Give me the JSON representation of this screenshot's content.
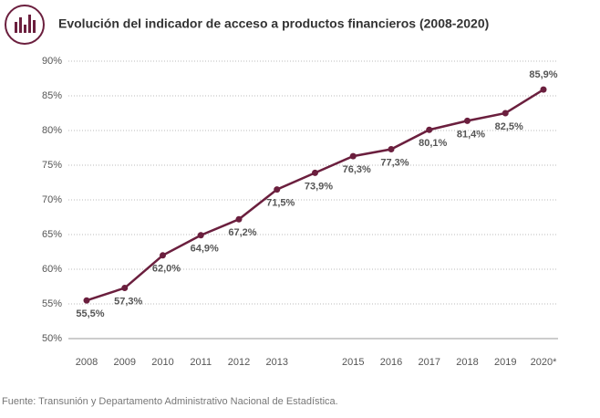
{
  "chart_data": {
    "type": "line",
    "title": "Evolución del indicador de acceso a productos financieros (2008-2020)",
    "source": "Fuente: Transunión y Departamento Administrativo Nacional de Estadística.",
    "categories": [
      "2008",
      "2009",
      "2010",
      "2011",
      "2012",
      "2013",
      null,
      "2015",
      "2016",
      "2017",
      "2018",
      "2019",
      "2020*"
    ],
    "series": [
      {
        "name": "Indicador de acceso",
        "color": "#6b1f3e",
        "values": [
          55.5,
          57.3,
          62.0,
          64.9,
          67.2,
          71.5,
          73.9,
          76.3,
          77.3,
          80.1,
          81.4,
          82.5,
          85.9
        ],
        "value_labels": [
          "55,5%",
          "57,3%",
          "62,0%",
          "64,9%",
          "67,2%",
          "71,5%",
          "73,9%",
          "76,3%",
          "77,3%",
          "80,1%",
          "81,4%",
          "82,5%",
          "85,9%"
        ]
      }
    ],
    "ylim": [
      50,
      90
    ],
    "yticks": [
      {
        "value": 50,
        "label": "50%"
      },
      {
        "value": 55,
        "label": "55%"
      },
      {
        "value": 60,
        "label": "60%"
      },
      {
        "value": 65,
        "label": "65%"
      },
      {
        "value": 70,
        "label": "70%"
      },
      {
        "value": 75,
        "label": "75%"
      },
      {
        "value": 80,
        "label": "80%"
      },
      {
        "value": 85,
        "label": "85%"
      },
      {
        "value": 90,
        "label": "90%"
      }
    ],
    "grid": true
  }
}
